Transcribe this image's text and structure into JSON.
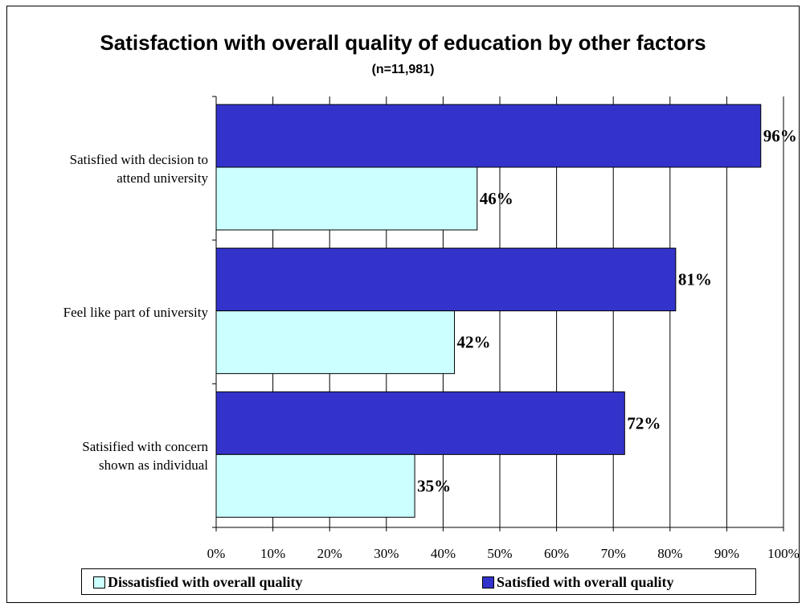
{
  "chart_data": {
    "type": "bar",
    "orientation": "horizontal",
    "title": "Satisfaction with overall quality of education by other factors",
    "subtitle": "(n=11,981)",
    "categories": [
      "Satisfied with decision to attend university",
      "Feel like part of university",
      "Satisified with concern shown as individual"
    ],
    "category_lines": [
      [
        "Satisfied with decision to",
        "attend university"
      ],
      [
        "Feel like part of university"
      ],
      [
        "Satisified with concern",
        "shown as individual"
      ]
    ],
    "series": [
      {
        "name": "Satisfied with overall quality",
        "values": [
          96,
          81,
          72
        ],
        "labels": [
          "96%",
          "81%",
          "72%"
        ],
        "color": "#3333cc"
      },
      {
        "name": "Dissatisfied with overall quality",
        "values": [
          46,
          42,
          35
        ],
        "labels": [
          "46%",
          "42%",
          "35%"
        ],
        "color": "#ccffff"
      }
    ],
    "xlim": [
      0,
      100
    ],
    "xticks": [
      0,
      10,
      20,
      30,
      40,
      50,
      60,
      70,
      80,
      90,
      100
    ],
    "xtick_labels": [
      "0%",
      "10%",
      "20%",
      "30%",
      "40%",
      "50%",
      "60%",
      "70%",
      "80%",
      "90%",
      "100%"
    ],
    "xlabel": "",
    "ylabel": "",
    "grid": true,
    "legend_position": "bottom",
    "legend": [
      {
        "name": "Dissatisfied with overall quality",
        "color": "#ccffff"
      },
      {
        "name": "Satisfied with overall quality",
        "color": "#3333cc"
      }
    ]
  }
}
